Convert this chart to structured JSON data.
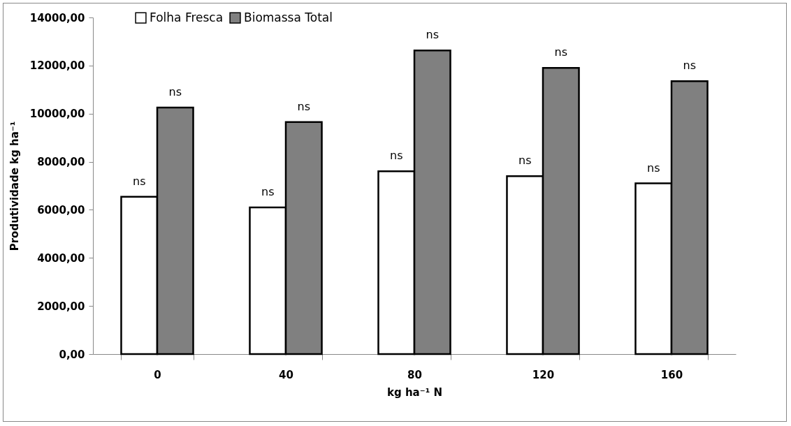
{
  "chart_data": {
    "type": "bar",
    "xlabel": "kg ha⁻¹ N",
    "ylabel": "Produtividade kg ha⁻¹",
    "categories": [
      "0",
      "40",
      "80",
      "120",
      "160"
    ],
    "series": [
      {
        "name": "Folha Fresca",
        "color": "#ffffff",
        "values": [
          6540,
          6100,
          7600,
          7400,
          7100
        ],
        "value_labels": [
          "ns",
          "ns",
          "ns",
          "ns",
          "ns"
        ]
      },
      {
        "name": "Biomassa Total",
        "color": "#808080",
        "values": [
          10250,
          9650,
          12630,
          11900,
          11350
        ],
        "value_labels": [
          "ns",
          "ns",
          "ns",
          "ns",
          "ns"
        ]
      }
    ],
    "ylim": [
      0,
      14000
    ],
    "yticks": [
      {
        "value": 0,
        "label": "0,00"
      },
      {
        "value": 2000,
        "label": "2000,00"
      },
      {
        "value": 4000,
        "label": "4000,00"
      },
      {
        "value": 6000,
        "label": "6000,00"
      },
      {
        "value": 8000,
        "label": "8000,00"
      },
      {
        "value": 10000,
        "label": "10000,00"
      },
      {
        "value": 12000,
        "label": "12000,00"
      },
      {
        "value": 14000,
        "label": "14000,00"
      }
    ],
    "grid": false,
    "legend": "top left"
  }
}
